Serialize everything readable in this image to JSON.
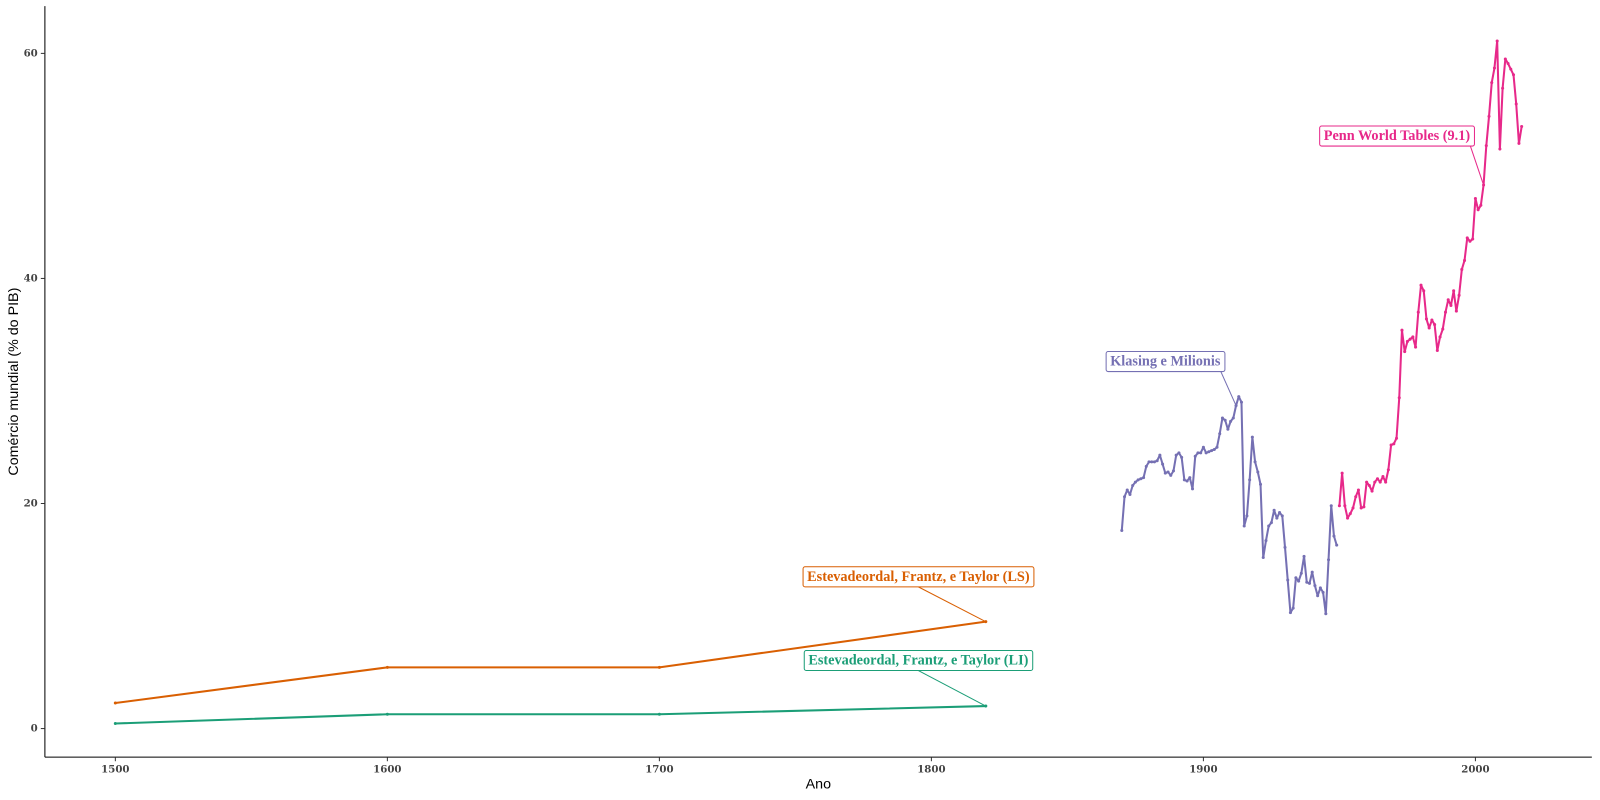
{
  "chart_data": {
    "type": "line",
    "xlabel": "Ano",
    "ylabel": "Comércio mundial (% do PIB)",
    "xlim": [
      1474.1,
      2042.8
    ],
    "ylim": [
      -2.54,
      64.2
    ],
    "xticks": [
      1500,
      1600,
      1700,
      1800,
      1900,
      2000
    ],
    "yticks": [
      0,
      20,
      40,
      60
    ],
    "grid": false,
    "series": [
      {
        "name": "Estevadeordal, Frantz, e Taylor (LS)",
        "color": "#d95f02",
        "x": [
          1500,
          1600,
          1700,
          1820
        ],
        "values": [
          2.27,
          5.44,
          5.44,
          9.5
        ]
      },
      {
        "name": "Estevadeordal, Frantz, e Taylor (LI)",
        "color": "#1b9e77",
        "x": [
          1500,
          1600,
          1700,
          1820
        ],
        "values": [
          0.45,
          1.27,
          1.27,
          2.0
        ]
      },
      {
        "name": "Klasing e Milionis",
        "color": "#7570b3",
        "x": [
          1870,
          1871,
          1872,
          1873,
          1874,
          1875,
          1876,
          1877,
          1878,
          1879,
          1880,
          1881,
          1882,
          1883,
          1884,
          1885,
          1886,
          1887,
          1888,
          1889,
          1890,
          1891,
          1892,
          1893,
          1894,
          1895,
          1896,
          1897,
          1898,
          1899,
          1900,
          1901,
          1902,
          1903,
          1904,
          1905,
          1906,
          1907,
          1908,
          1909,
          1910,
          1911,
          1912,
          1913,
          1914,
          1915,
          1916,
          1917,
          1918,
          1919,
          1920,
          1921,
          1922,
          1923,
          1924,
          1925,
          1926,
          1927,
          1928,
          1929,
          1930,
          1931,
          1932,
          1933,
          1934,
          1935,
          1936,
          1937,
          1938,
          1939,
          1940,
          1941,
          1942,
          1943,
          1944,
          1945,
          1946,
          1947,
          1948,
          1949
        ],
        "values": [
          17.6,
          20.6,
          21.2,
          20.8,
          21.6,
          21.9,
          22.1,
          22.2,
          22.3,
          23.3,
          23.7,
          23.7,
          23.7,
          23.8,
          24.3,
          23.5,
          22.7,
          22.8,
          22.5,
          22.9,
          24.3,
          24.5,
          24.1,
          22.1,
          22.0,
          22.3,
          21.3,
          24.2,
          24.5,
          24.5,
          25.0,
          24.5,
          24.6,
          24.7,
          24.8,
          25.0,
          26.2,
          27.6,
          27.4,
          26.6,
          27.3,
          27.6,
          28.7,
          29.5,
          29.0,
          18.0,
          18.9,
          22.1,
          25.9,
          23.7,
          22.8,
          21.7,
          15.2,
          16.7,
          18.0,
          18.3,
          19.4,
          18.7,
          19.2,
          18.9,
          16.1,
          13.2,
          10.3,
          10.7,
          13.4,
          13.1,
          13.8,
          15.3,
          13.0,
          12.9,
          13.9,
          12.7,
          11.8,
          12.5,
          12.1,
          10.2,
          15.0,
          19.8,
          17.1,
          16.3
        ]
      },
      {
        "name": "Penn World Tables (9.1)",
        "color": "#e7298a",
        "x": [
          1950,
          1951,
          1952,
          1953,
          1954,
          1955,
          1956,
          1957,
          1958,
          1959,
          1960,
          1961,
          1962,
          1963,
          1964,
          1965,
          1966,
          1967,
          1968,
          1969,
          1970,
          1971,
          1972,
          1973,
          1974,
          1975,
          1976,
          1977,
          1978,
          1979,
          1980,
          1981,
          1982,
          1983,
          1984,
          1985,
          1986,
          1987,
          1988,
          1989,
          1990,
          1991,
          1992,
          1993,
          1994,
          1995,
          1996,
          1997,
          1998,
          1999,
          2000,
          2001,
          2002,
          2003,
          2004,
          2005,
          2006,
          2007,
          2008,
          2009,
          2010,
          2011,
          2012,
          2013,
          2014,
          2015,
          2016,
          2017
        ],
        "values": [
          19.8,
          22.7,
          19.8,
          18.7,
          19.1,
          19.6,
          20.6,
          21.2,
          19.6,
          19.7,
          21.9,
          21.6,
          21.1,
          21.9,
          22.2,
          21.9,
          22.4,
          21.9,
          23.0,
          25.2,
          25.3,
          25.8,
          29.4,
          35.4,
          33.5,
          34.4,
          34.6,
          34.8,
          33.9,
          37.0,
          39.4,
          38.9,
          36.4,
          35.6,
          36.3,
          35.9,
          33.6,
          34.8,
          35.5,
          37.0,
          38.1,
          37.6,
          38.9,
          37.1,
          38.5,
          40.8,
          41.6,
          43.6,
          43.3,
          43.5,
          47.1,
          46.1,
          46.5,
          48.3,
          51.8,
          54.4,
          57.4,
          58.7,
          61.1,
          51.5,
          56.9,
          59.5,
          59.1,
          58.6,
          58.1,
          55.5,
          52.0,
          53.5
        ]
      }
    ]
  }
}
